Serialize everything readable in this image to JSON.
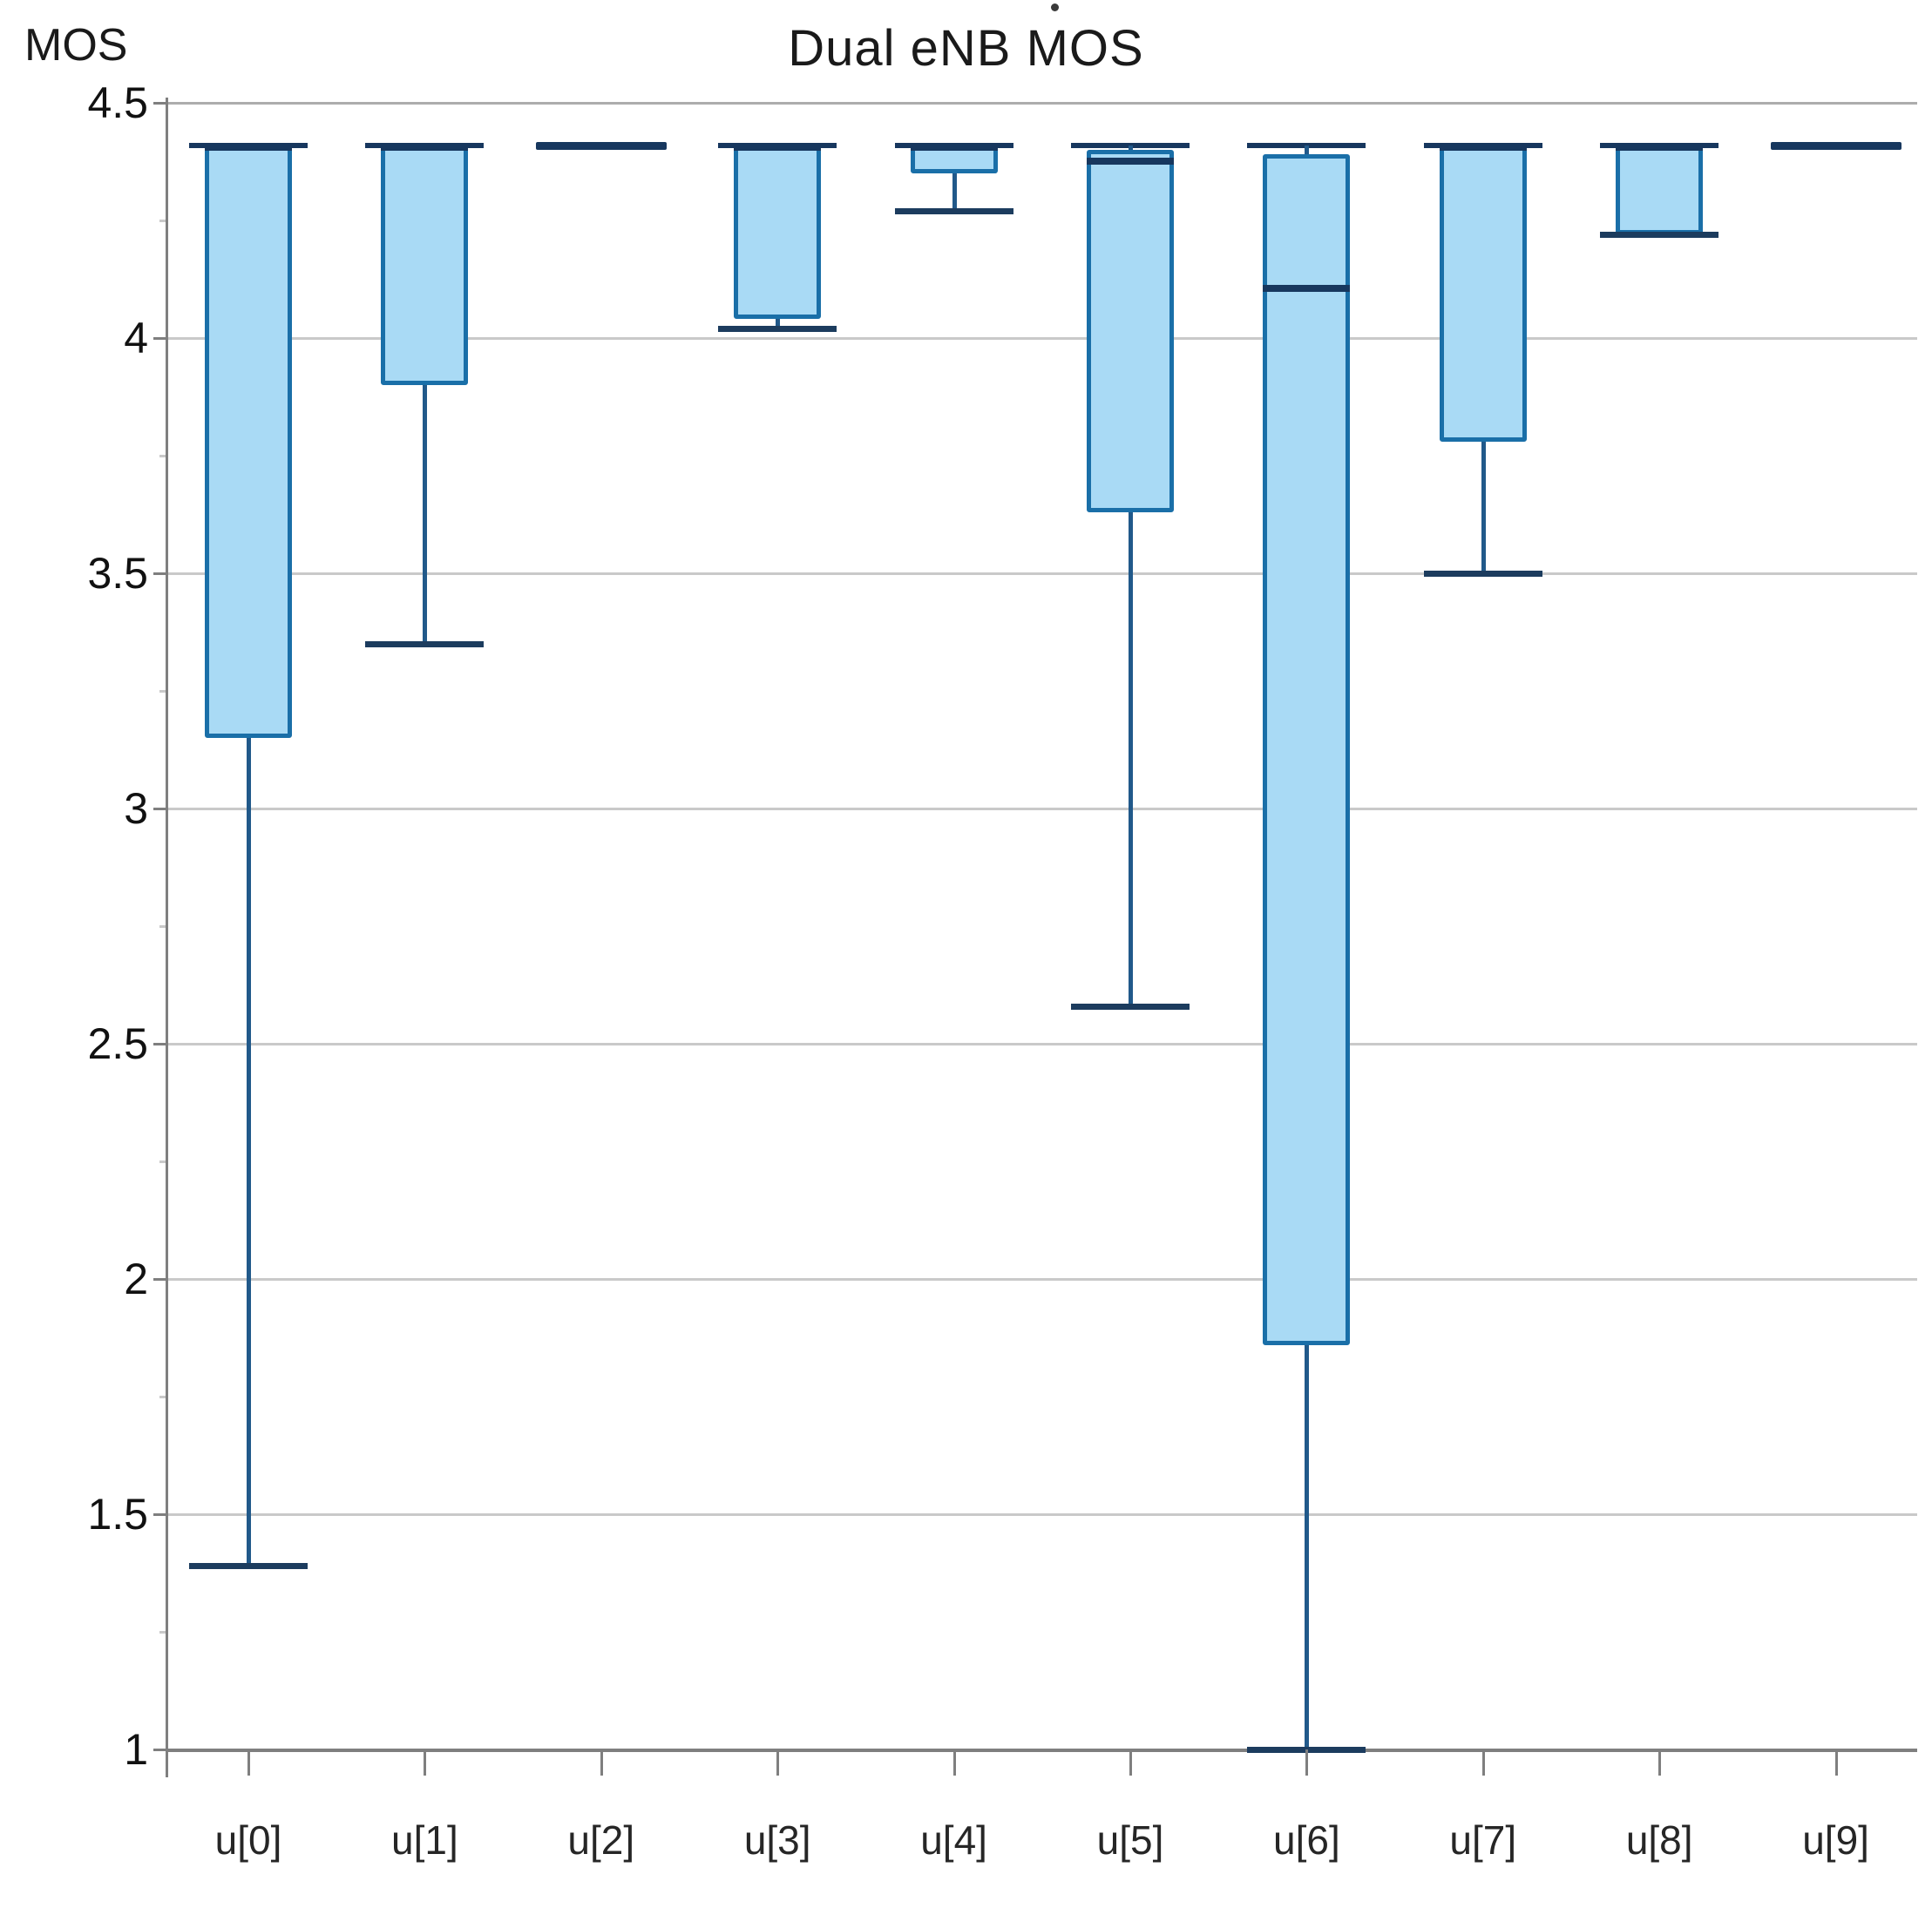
{
  "header": {
    "title": "Dual eNB MOS"
  },
  "chart_data": {
    "type": "box",
    "title": "Dual eNB MOS",
    "ylabel": "MOS",
    "ylim": [
      1,
      4.5
    ],
    "ytick_step": 0.5,
    "yminor_step": 0.25,
    "grid": true,
    "legend": "none",
    "categories": [
      "u[0]",
      "u[1]",
      "u[2]",
      "u[3]",
      "u[4]",
      "u[5]",
      "u[6]",
      "u[7]",
      "u[8]",
      "u[9]"
    ],
    "series": [
      {
        "label": "u[0]",
        "min": 1.39,
        "q1": 3.15,
        "median": 4.41,
        "q3": 4.41,
        "max": 4.41
      },
      {
        "label": "u[1]",
        "min": 3.35,
        "q1": 3.9,
        "median": 4.41,
        "q3": 4.41,
        "max": 4.41
      },
      {
        "label": "u[2]",
        "min": 4.41,
        "q1": 4.41,
        "median": 4.41,
        "q3": 4.41,
        "max": 4.41
      },
      {
        "label": "u[3]",
        "min": 4.02,
        "q1": 4.04,
        "median": 4.41,
        "q3": 4.41,
        "max": 4.41
      },
      {
        "label": "u[4]",
        "min": 4.27,
        "q1": 4.35,
        "median": 4.41,
        "q3": 4.41,
        "max": 4.41
      },
      {
        "label": "u[5]",
        "min": 2.58,
        "q1": 3.63,
        "median": 4.38,
        "q3": 4.4,
        "max": 4.41
      },
      {
        "label": "u[6]",
        "min": 1.0,
        "q1": 1.86,
        "median": 4.11,
        "q3": 4.39,
        "max": 4.41
      },
      {
        "label": "u[7]",
        "min": 3.5,
        "q1": 3.78,
        "median": 4.41,
        "q3": 4.41,
        "max": 4.41
      },
      {
        "label": "u[8]",
        "min": 4.22,
        "q1": 4.22,
        "median": 4.41,
        "q3": 4.41,
        "max": 4.41
      },
      {
        "label": "u[9]",
        "min": 4.41,
        "q1": 4.41,
        "median": 4.41,
        "q3": 4.41,
        "max": 4.41
      }
    ]
  },
  "colors": {
    "box_fill": "#a9daf5",
    "box_border": "#1a6fa8",
    "median_line": "#17375e",
    "whisker_stem": "#21598a",
    "whisker_cap": "#1c3c5e",
    "flat_line": "#17375e",
    "gridline": "#c9c9c9",
    "top_border": "#adadad",
    "axis": "#7f7f7f",
    "text": "#1a1a1a"
  }
}
